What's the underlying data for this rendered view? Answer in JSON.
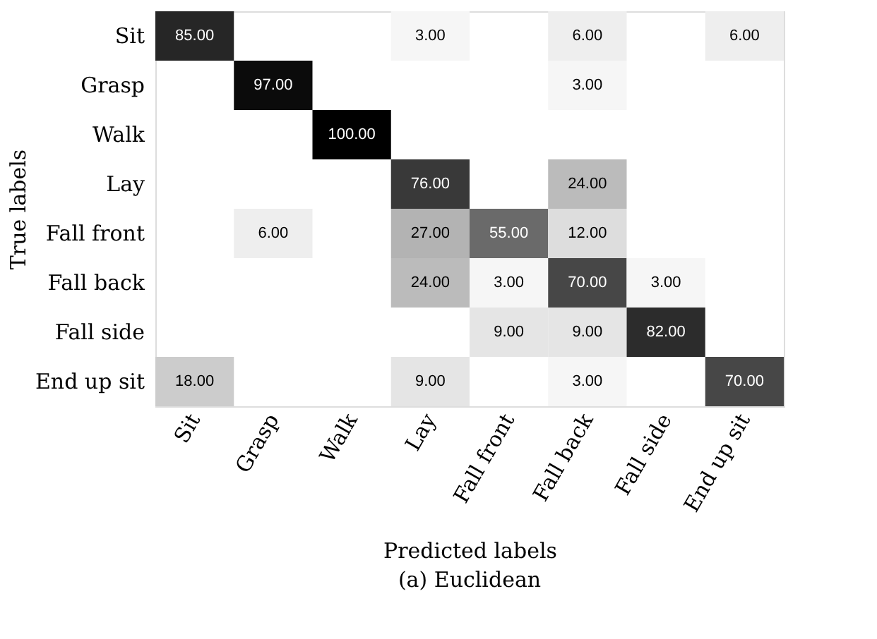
{
  "chart_data": {
    "type": "heatmap",
    "title": "(a) Euclidean",
    "xlabel": "Predicted labels",
    "ylabel": "True labels",
    "categories": [
      "Sit",
      "Grasp",
      "Walk",
      "Lay",
      "Fall front",
      "Fall back",
      "Fall side",
      "End up sit"
    ],
    "y_categories": [
      "Sit",
      "Grasp",
      "Walk",
      "Lay",
      "Fall front",
      "Fall back",
      "Fall side",
      "End up sit"
    ],
    "cells": [
      [
        85,
        null,
        null,
        3,
        null,
        6,
        null,
        6
      ],
      [
        null,
        97,
        null,
        null,
        null,
        3,
        null,
        null
      ],
      [
        null,
        null,
        100,
        null,
        null,
        null,
        null,
        null
      ],
      [
        null,
        null,
        null,
        76,
        null,
        24,
        null,
        null
      ],
      [
        null,
        6,
        null,
        27,
        55,
        12,
        null,
        null
      ],
      [
        null,
        null,
        null,
        24,
        3,
        70,
        3,
        null
      ],
      [
        null,
        null,
        null,
        null,
        9,
        9,
        82,
        null
      ],
      [
        18,
        null,
        null,
        9,
        null,
        3,
        null,
        70
      ]
    ],
    "cell_labels": [
      [
        "85.00",
        null,
        null,
        "3.00",
        null,
        "6.00",
        null,
        "6.00"
      ],
      [
        null,
        "97.00",
        null,
        null,
        null,
        "3.00",
        null,
        null
      ],
      [
        null,
        null,
        "100.00",
        null,
        null,
        null,
        null,
        null
      ],
      [
        null,
        null,
        null,
        "76.00",
        null,
        "24.00",
        null,
        null
      ],
      [
        null,
        "6.00",
        null,
        "27.00",
        "55.00",
        "12.00",
        null,
        null
      ],
      [
        null,
        null,
        null,
        "24.00",
        "3.00",
        "70.00",
        "3.00",
        null
      ],
      [
        null,
        null,
        null,
        null,
        "9.00",
        "9.00",
        "82.00",
        null
      ],
      [
        "18.00",
        null,
        null,
        "9.00",
        null,
        "3.00",
        null,
        "70.00"
      ]
    ]
  }
}
